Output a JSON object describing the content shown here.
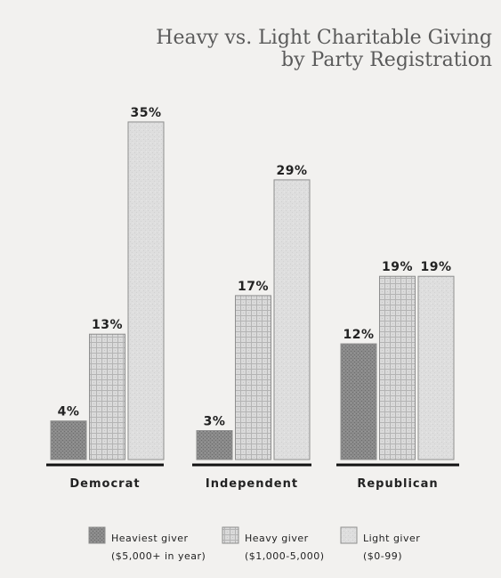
{
  "title_line1": "Heavy vs. Light Charitable Giving",
  "title_line2": "by Party Registration",
  "chart_data": {
    "type": "bar",
    "title": "Heavy vs. Light Charitable Giving by Party Registration",
    "categories": [
      "Democrat",
      "Independent",
      "Republican"
    ],
    "series": [
      {
        "name": "Heaviest giver",
        "values": [
          4,
          3,
          12
        ],
        "labels": [
          "4%",
          "3%",
          "12%"
        ]
      },
      {
        "name": "Heavy giver",
        "values": [
          13,
          17,
          19
        ],
        "labels": [
          "13%",
          "17%",
          "19%"
        ]
      },
      {
        "name": "Light giver",
        "values": [
          35,
          29,
          19
        ],
        "labels": [
          "35%",
          "29%",
          "19%"
        ]
      }
    ],
    "unit": "%",
    "ylim": [
      0,
      35
    ],
    "grid": false,
    "legend_position": "bottom"
  },
  "legend": [
    {
      "name": "Heaviest giver",
      "sub": "($5,000+ in year)"
    },
    {
      "name": "Heavy giver",
      "sub": "($1,000-5,000)"
    },
    {
      "name": "Light giver",
      "sub": "($0-99)"
    }
  ],
  "colors": {
    "background": "#f2f1ef",
    "heaviest": "#858585",
    "heavy": "#d6d6d6",
    "light": "#dcdcdc",
    "axis": "#111111",
    "text": "#222222"
  }
}
